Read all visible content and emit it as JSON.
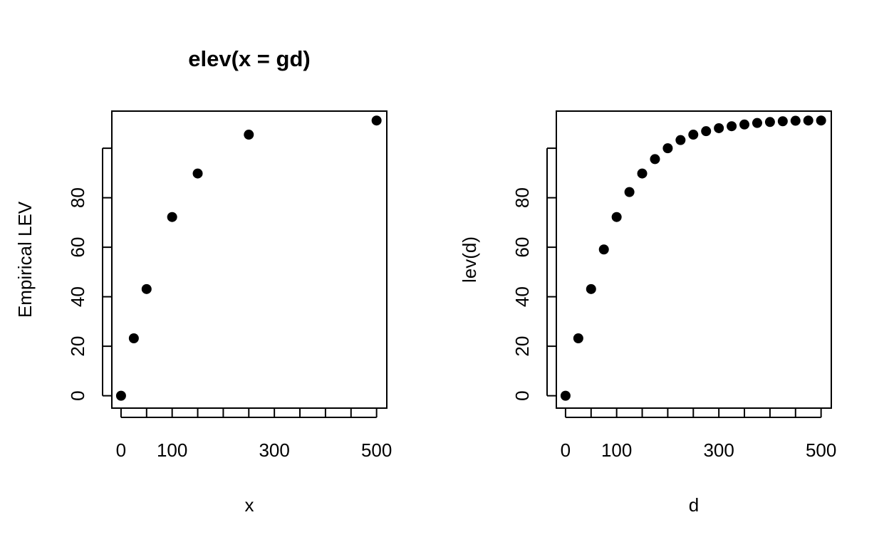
{
  "chart_data": [
    {
      "type": "scatter",
      "title": "elev(x = gd)",
      "xlabel": "x",
      "ylabel": "Empirical LEV",
      "xlim": [
        -18,
        520
      ],
      "ylim": [
        -5,
        115
      ],
      "x_ticks": [
        0,
        50,
        100,
        150,
        200,
        250,
        300,
        350,
        400,
        450,
        500
      ],
      "x_tick_labels": [
        "0",
        "",
        "100",
        "",
        "",
        "",
        "300",
        "",
        "",
        "",
        "500"
      ],
      "y_ticks": [
        0,
        20,
        40,
        60,
        80,
        100
      ],
      "y_tick_labels": [
        "0",
        "20",
        "40",
        "60",
        "80",
        ""
      ],
      "grid": false,
      "marker_color": "#000000",
      "x": [
        0,
        25,
        50,
        100,
        150,
        250,
        500
      ],
      "y": [
        0,
        23.2,
        43.1,
        72.2,
        89.8,
        105.5,
        111.2
      ]
    },
    {
      "type": "scatter",
      "title": "",
      "xlabel": "d",
      "ylabel": "lev(d)",
      "xlim": [
        -18,
        520
      ],
      "ylim": [
        -5,
        115
      ],
      "x_ticks": [
        0,
        50,
        100,
        150,
        200,
        250,
        300,
        350,
        400,
        450,
        500
      ],
      "x_tick_labels": [
        "0",
        "",
        "100",
        "",
        "",
        "",
        "300",
        "",
        "",
        "",
        "500"
      ],
      "y_ticks": [
        0,
        20,
        40,
        60,
        80,
        100
      ],
      "y_tick_labels": [
        "0",
        "20",
        "40",
        "60",
        "80",
        ""
      ],
      "grid": false,
      "marker_color": "#000000",
      "x": [
        0,
        25,
        50,
        75,
        100,
        125,
        150,
        175,
        200,
        225,
        250,
        275,
        300,
        325,
        350,
        375,
        400,
        425,
        450,
        475,
        500
      ],
      "y": [
        0,
        23.2,
        43.1,
        59.1,
        72.2,
        82.3,
        89.8,
        95.6,
        100.0,
        103.3,
        105.5,
        106.9,
        108.1,
        108.9,
        109.6,
        110.2,
        110.6,
        110.9,
        111.1,
        111.2,
        111.2
      ]
    }
  ]
}
